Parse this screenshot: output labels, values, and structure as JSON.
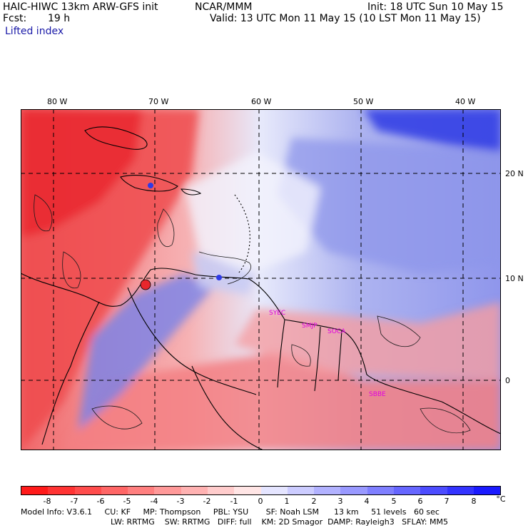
{
  "header": {
    "model_title": "HAIC-HIWC 13km ARW-GFS init",
    "org": "NCAR/MMM",
    "init": "Init: 18 UTC Sun 10 May 15",
    "fcst_label": "Fcst:",
    "fcst_value": "19 h",
    "valid": "Valid: 13 UTC Mon 11 May 15 (10 LST Mon 11 May 15)",
    "field_name": "Lifted index"
  },
  "map": {
    "longitude_labels": [
      "80 W",
      "70 W",
      "60 W",
      "50 W",
      "40 W"
    ],
    "latitude_labels": [
      "20 N",
      "10 N",
      "0"
    ],
    "station_labels": [
      "SYEC",
      "SMJP",
      "SOCA",
      "SBBE"
    ],
    "colors": {
      "negative_deep": "#f0353a",
      "negative_light": "#f8aeb0",
      "neutral": "#ffffff",
      "positive_light": "#c9cef6",
      "positive_deep": "#2f3ae6",
      "station_label": "#e000e0"
    }
  },
  "colorbar": {
    "tick_labels": [
      "-8",
      "-7",
      "-6",
      "-5",
      "-4",
      "-3",
      "-2",
      "-1",
      "0",
      "1",
      "2",
      "3",
      "4",
      "5",
      "6",
      "7",
      "8"
    ],
    "unit": "°C",
    "colors": [
      "#ff1a1a",
      "#ff3333",
      "#ff4c4c",
      "#ff6666",
      "#ff7f7f",
      "#ff9999",
      "#ffb2b2",
      "#ffcccc",
      "#ffe5e5",
      "#e5e5ff",
      "#ccccff",
      "#b2b2ff",
      "#9999ff",
      "#7f7fff",
      "#6666ff",
      "#4c4cff",
      "#3333ff",
      "#1a1aff"
    ]
  },
  "footer": {
    "line1": "Model Info: V3.6.1     CU: KF     MP: Thompson     PBL: YSU       SF: Noah LSM      13 km     51 levels   60 sec",
    "line2": "LW: RRTMG    SW: RRTMG   DIFF: full    KM: 2D Smagor  DAMP: Rayleigh3   SFLAY: MM5"
  }
}
